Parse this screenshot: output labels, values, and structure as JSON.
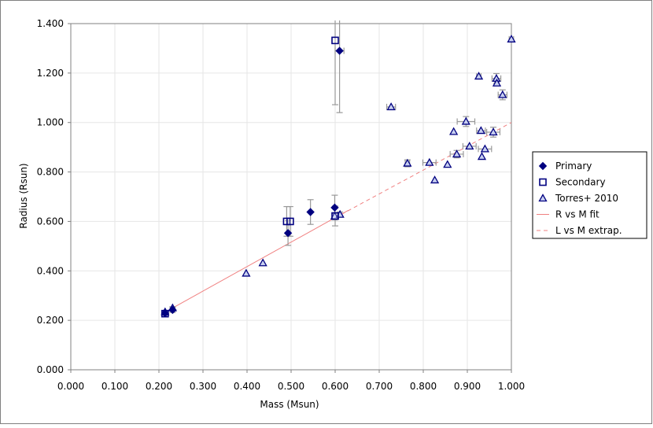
{
  "chart_data": {
    "type": "scatter",
    "title": "",
    "xlabel": "Mass (Msun)",
    "ylabel": "Radius (Rsun)",
    "xlim": [
      0.0,
      1.0
    ],
    "ylim": [
      0.0,
      1.4
    ],
    "x_ticks": [
      "0.000",
      "0.100",
      "0.200",
      "0.300",
      "0.400",
      "0.500",
      "0.600",
      "0.700",
      "0.800",
      "0.900",
      "1.000"
    ],
    "y_ticks": [
      "0.000",
      "0.200",
      "0.400",
      "0.600",
      "0.800",
      "1.000",
      "1.200",
      "1.400"
    ],
    "grid": true,
    "legend_position": "right",
    "colors": {
      "primary": "#000080",
      "secondary": "#000080",
      "torres_fill": "#c8d0f0",
      "error_bar": "#999999",
      "fit": "#f08080",
      "grid": "#e6e6e6",
      "frame": "#808080"
    },
    "series": [
      {
        "name": "Primary",
        "marker": "diamond",
        "points": [
          {
            "x": 0.214,
            "y": 0.228,
            "yerr": 0.006
          },
          {
            "x": 0.231,
            "y": 0.242,
            "yerr": 0.01
          },
          {
            "x": 0.493,
            "y": 0.553,
            "yerr": 0.05
          },
          {
            "x": 0.544,
            "y": 0.638,
            "yerr": 0.05
          },
          {
            "x": 0.599,
            "y": 0.656,
            "yerr": 0.05
          },
          {
            "x": 0.61,
            "y": 1.29,
            "yerr": 0.25,
            "xerr": 0.01
          }
        ]
      },
      {
        "name": "Secondary",
        "marker": "square",
        "points": [
          {
            "x": 0.214,
            "y": 0.227,
            "yerr": 0.006
          },
          {
            "x": 0.49,
            "y": 0.6,
            "yerr": 0.06
          },
          {
            "x": 0.498,
            "y": 0.6,
            "yerr": 0.06
          },
          {
            "x": 0.6,
            "y": 1.332,
            "yerr": 0.26
          },
          {
            "x": 0.6,
            "y": 0.622,
            "yerr": 0.04
          }
        ]
      },
      {
        "name": "Torres+ 2010",
        "marker": "triangle",
        "points": [
          {
            "x": 0.214,
            "y": 0.234,
            "yerr": 0.005
          },
          {
            "x": 0.231,
            "y": 0.25,
            "yerr": 0.005
          },
          {
            "x": 0.398,
            "y": 0.39
          },
          {
            "x": 0.436,
            "y": 0.432
          },
          {
            "x": 0.599,
            "y": 0.621,
            "yerr": 0.01
          },
          {
            "x": 0.611,
            "y": 0.628,
            "yerr": 0.01
          },
          {
            "x": 0.727,
            "y": 1.063,
            "xerr": 0.01
          },
          {
            "x": 0.764,
            "y": 0.835,
            "xerr": 0.005,
            "yerr": 0.014
          },
          {
            "x": 0.814,
            "y": 0.838,
            "xerr": 0.015
          },
          {
            "x": 0.826,
            "y": 0.767
          },
          {
            "x": 0.855,
            "y": 0.83
          },
          {
            "x": 0.869,
            "y": 0.963
          },
          {
            "x": 0.876,
            "y": 0.872,
            "xerr": 0.015,
            "yerr": 0.015
          },
          {
            "x": 0.897,
            "y": 1.004,
            "xerr": 0.02,
            "yerr": 0.02
          },
          {
            "x": 0.905,
            "y": 0.904,
            "xerr": 0.015
          },
          {
            "x": 0.926,
            "y": 1.187,
            "xerr": 0.005
          },
          {
            "x": 0.931,
            "y": 0.967,
            "xerr": 0.01
          },
          {
            "x": 0.933,
            "y": 0.862
          },
          {
            "x": 0.94,
            "y": 0.893,
            "xerr": 0.015
          },
          {
            "x": 0.959,
            "y": 0.961,
            "xerr": 0.015,
            "yerr": 0.02
          },
          {
            "x": 0.966,
            "y": 1.178,
            "xerr": 0.01,
            "yerr": 0.02
          },
          {
            "x": 0.967,
            "y": 1.159,
            "xerr": 0.005
          },
          {
            "x": 0.98,
            "y": 1.112,
            "xerr": 0.01,
            "yerr": 0.02
          },
          {
            "x": 1.0,
            "y": 1.337,
            "xerr": 0.005
          }
        ]
      },
      {
        "name": "R vs M fit",
        "type": "line",
        "style": "solid",
        "points": [
          {
            "x": 0.214,
            "y": 0.233
          },
          {
            "x": 0.63,
            "y": 0.645
          }
        ]
      },
      {
        "name": "L vs M extrap.",
        "type": "line",
        "style": "dashed",
        "points": [
          {
            "x": 0.6,
            "y": 0.615
          },
          {
            "x": 1.0,
            "y": 1.0
          }
        ]
      }
    ]
  }
}
